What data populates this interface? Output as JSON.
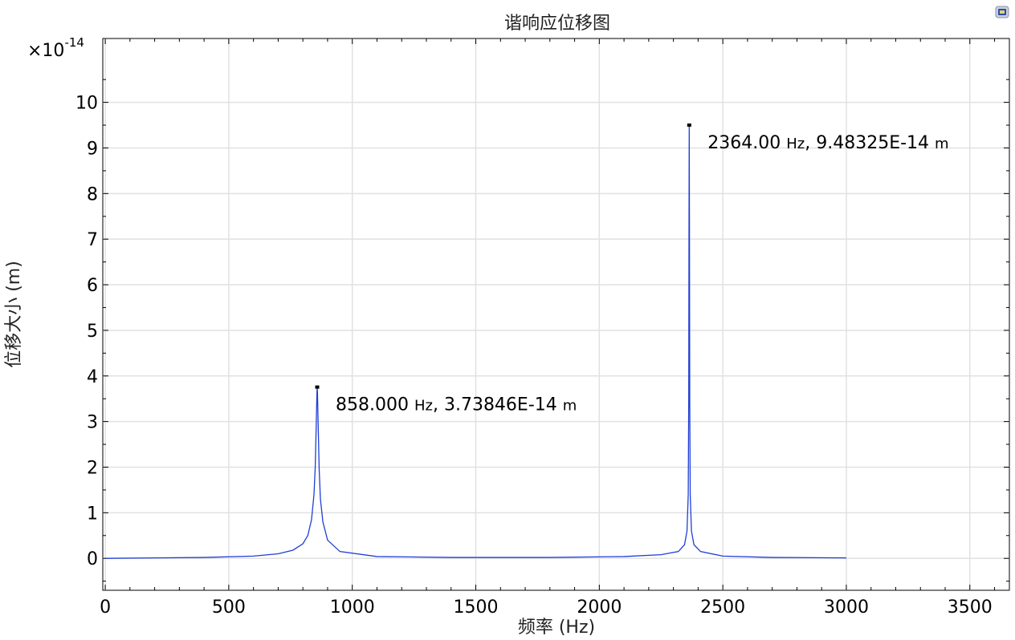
{
  "chart_data": {
    "type": "line",
    "title": "谐响应位移图",
    "xlabel": "频率 (Hz)",
    "ylabel": "位移大小 (m)",
    "y_multiplier": {
      "prefix": "×10",
      "exponent": "-14"
    },
    "xlim": [
      -10,
      3660
    ],
    "ylim": [
      -0.7,
      11.4
    ],
    "x_ticks": [
      0,
      500,
      1000,
      1500,
      2000,
      2500,
      3000,
      3500
    ],
    "x_tick_labels": [
      "0",
      "500",
      "1000",
      "1500",
      "2000",
      "2500",
      "3000",
      "3500"
    ],
    "y_ticks": [
      0,
      1,
      2,
      3,
      4,
      5,
      6,
      7,
      8,
      9,
      10
    ],
    "y_tick_labels": [
      "0",
      "1",
      "2",
      "3",
      "4",
      "5",
      "6",
      "7",
      "8",
      "9",
      "10"
    ],
    "grid": true,
    "series": [
      {
        "color": "#1f3fd6",
        "x": [
          0,
          200,
          400,
          600,
          700,
          760,
          800,
          820,
          835,
          845,
          850,
          854,
          856,
          857,
          858,
          859,
          860,
          862,
          866,
          871,
          881,
          900,
          950,
          1100,
          1400,
          1800,
          2100,
          2250,
          2320,
          2345,
          2355,
          2360,
          2362,
          2363,
          2364,
          2365,
          2366,
          2368,
          2373,
          2383,
          2410,
          2500,
          2700,
          3000
        ],
        "y": [
          0.0,
          0.01,
          0.02,
          0.05,
          0.1,
          0.18,
          0.32,
          0.5,
          0.85,
          1.4,
          2.0,
          2.9,
          3.4,
          3.65,
          3.74,
          3.65,
          3.4,
          2.9,
          1.95,
          1.3,
          0.8,
          0.4,
          0.15,
          0.04,
          0.02,
          0.02,
          0.04,
          0.08,
          0.15,
          0.3,
          0.6,
          1.4,
          3.5,
          7.0,
          9.48,
          7.0,
          3.5,
          1.4,
          0.6,
          0.3,
          0.15,
          0.05,
          0.02,
          0.01
        ]
      }
    ],
    "markers": [
      {
        "x": 858,
        "y": 3.73846,
        "label_value": "858.000",
        "label_unit_x": "Hz",
        "label_y": "3.73846E-14",
        "label_unit_y": "m"
      },
      {
        "x": 2364,
        "y": 9.48325,
        "label_value": "2364.00",
        "label_unit_x": "Hz",
        "label_y": "9.48325E-14",
        "label_unit_y": "m"
      }
    ],
    "colors": {
      "grid": "#e1e1e1",
      "axis": "#000000",
      "line": "#1f3fd6"
    }
  },
  "toolbar": {
    "icon": "screen-icon"
  }
}
